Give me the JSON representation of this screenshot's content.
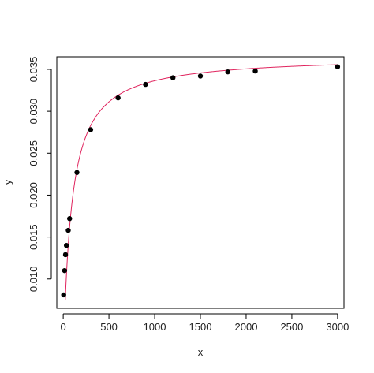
{
  "chart_data": {
    "type": "scatter",
    "title": "",
    "xlabel": "x",
    "ylabel": "y",
    "xlim": [
      -70,
      3070
    ],
    "ylim": [
      0.0065,
      0.0365
    ],
    "x_ticks": [
      0,
      500,
      1000,
      1500,
      2000,
      2500,
      3000
    ],
    "x_tick_labels": [
      "0",
      "500",
      "1000",
      "1500",
      "2000",
      "2500",
      "3000"
    ],
    "y_ticks": [
      0.01,
      0.015,
      0.02,
      0.025,
      0.03,
      0.035
    ],
    "y_tick_labels": [
      "0.010",
      "0.015",
      "0.020",
      "0.025",
      "0.030",
      "0.035"
    ],
    "grid": false,
    "legend": "none",
    "series": [
      {
        "type": "scatter",
        "color": "#000000",
        "x": [
          5,
          15,
          25,
          35,
          55,
          70,
          150,
          300,
          600,
          900,
          1200,
          1500,
          1800,
          2100,
          3000
        ],
        "y": [
          0.0081,
          0.011,
          0.0129,
          0.014,
          0.0158,
          0.0172,
          0.0227,
          0.0278,
          0.0316,
          0.0332,
          0.034,
          0.0342,
          0.0347,
          0.0348,
          0.0353
        ]
      },
      {
        "type": "line",
        "color": "#e0245e",
        "model": "y = a*x/(b+x)",
        "params": {
          "a": 0.0366,
          "b": 88
        },
        "x_range": [
          0,
          3000
        ]
      }
    ]
  }
}
